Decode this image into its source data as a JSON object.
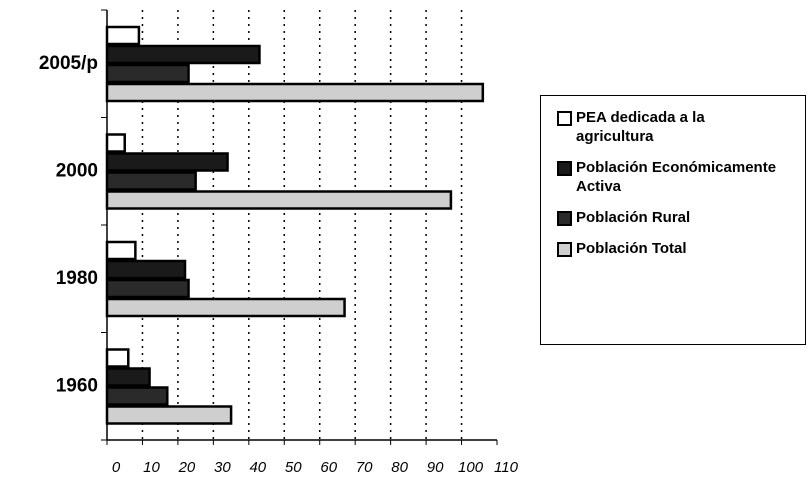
{
  "chart_data": {
    "type": "barh",
    "categories": [
      "2005/p",
      "2000",
      "1980",
      "1960"
    ],
    "series": [
      {
        "name": "PEA dedicada a la agricultura",
        "color": "#ffffff",
        "values": [
          9,
          5,
          8,
          6
        ]
      },
      {
        "name": "Población Económicamente Activa",
        "color": "#1a1a1a",
        "values": [
          43,
          34,
          22,
          12
        ]
      },
      {
        "name": "Población Rural",
        "color": "#2a2a2a",
        "values": [
          23,
          25,
          23,
          17
        ]
      },
      {
        "name": "Población Total",
        "color": "#cfcfcf",
        "values": [
          106,
          97,
          67,
          35
        ]
      }
    ],
    "xlim": [
      0,
      110
    ],
    "xticks": [
      0,
      10,
      20,
      30,
      40,
      50,
      60,
      70,
      80,
      90,
      100,
      110
    ],
    "grid": true,
    "legend": "right"
  }
}
